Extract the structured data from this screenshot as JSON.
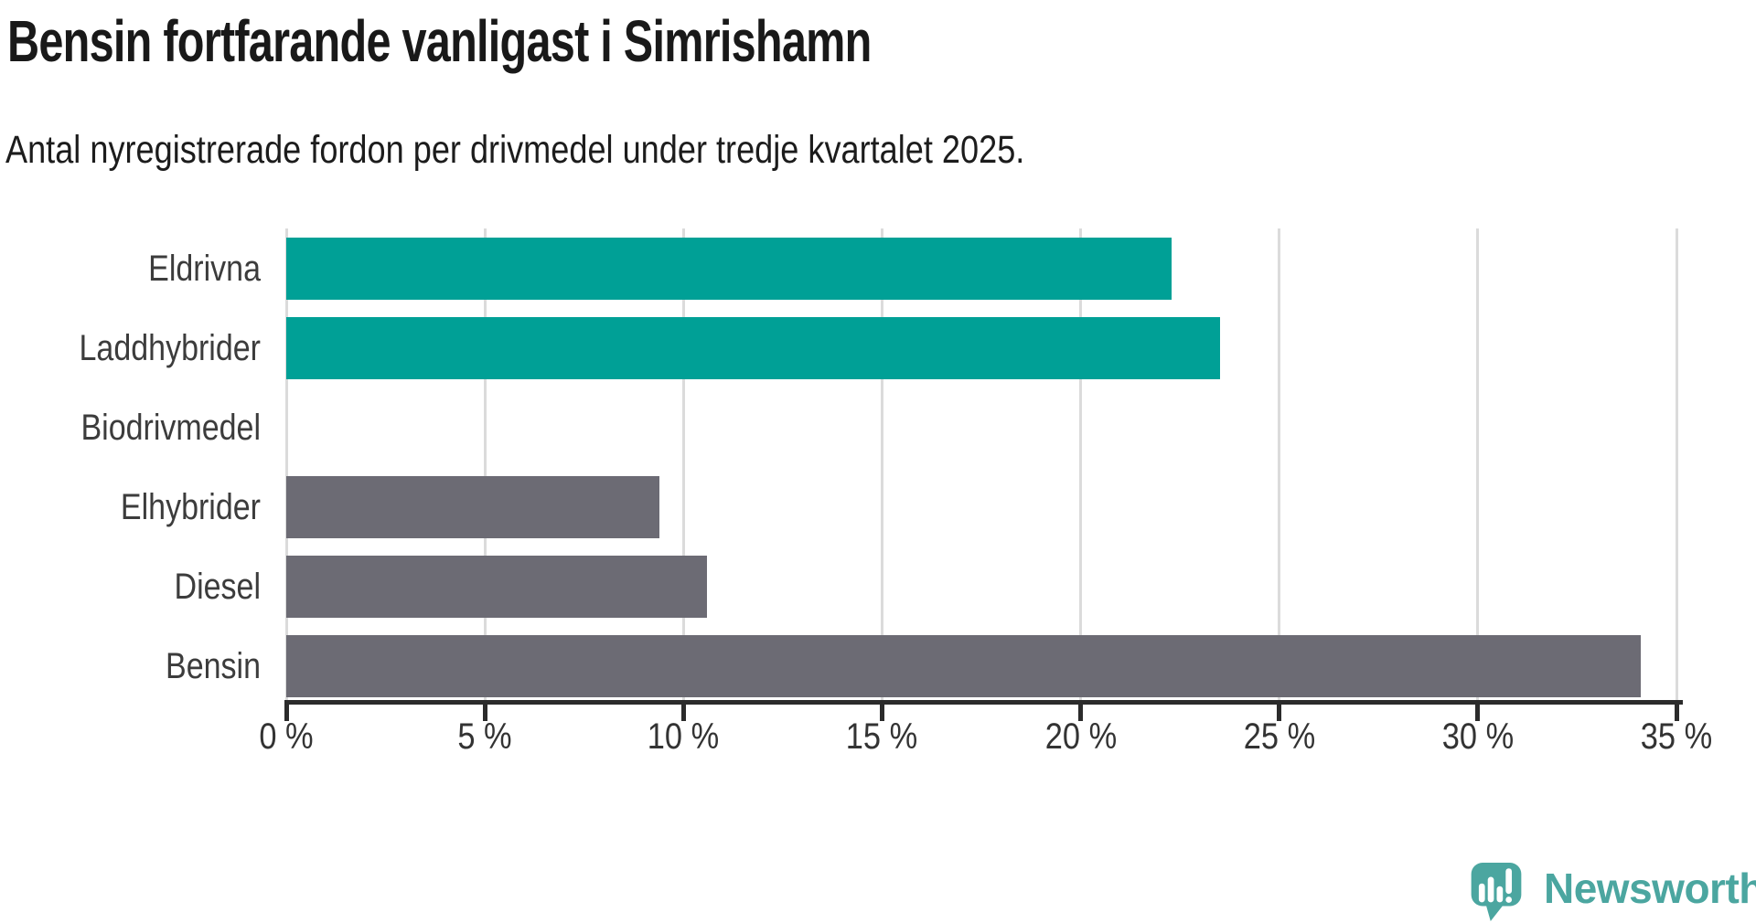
{
  "chart_data": {
    "type": "bar",
    "orientation": "horizontal",
    "title": "Bensin fortfarande vanligast i Simrishamn",
    "subtitle": "Antal nyregistrerade fordon per drivmedel under tredje kvartalet 2025.",
    "categories": [
      "Eldrivna",
      "Laddhybrider",
      "Biodrivmedel",
      "Elhybrider",
      "Diesel",
      "Bensin"
    ],
    "values": [
      22.3,
      23.5,
      0,
      9.4,
      10.6,
      34.1
    ],
    "unit": "%",
    "xlim": [
      0,
      35
    ],
    "x_tick_values": [
      0,
      5,
      10,
      15,
      20,
      25,
      30,
      35
    ],
    "x_tick_labels": [
      "0 %",
      "5 %",
      "10 %",
      "15 %",
      "20 %",
      "25 %",
      "30 %",
      "35 %"
    ],
    "grid": true,
    "legend": false,
    "highlight_color": "#00a096",
    "default_color": "#6c6b74",
    "bar_colors": [
      "#00a096",
      "#00a096",
      "#6c6b74",
      "#6c6b74",
      "#6c6b74",
      "#6c6b74"
    ]
  },
  "branding": {
    "logo_text": "Newsworthy",
    "logo_color": "#4ba6a0"
  }
}
